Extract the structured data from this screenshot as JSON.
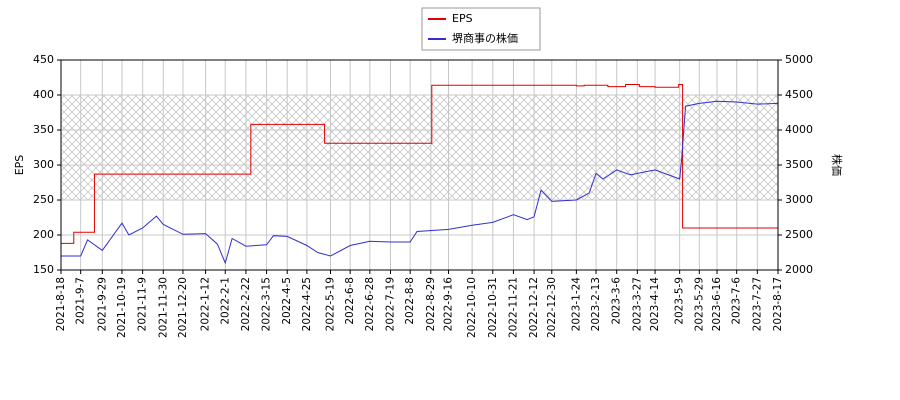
{
  "chart_data": {
    "type": "line",
    "legend": "upper center",
    "grid": true,
    "ylabel": "EPS",
    "y2label": "株価",
    "xlim": [
      "2021-8-18",
      "2023-8-17"
    ],
    "xticks": [
      "2021-8-18",
      "2021-9-7",
      "2021-9-29",
      "2021-10-19",
      "2021-11-9",
      "2021-11-30",
      "2021-12-20",
      "2022-1-12",
      "2022-2-1",
      "2022-2-22",
      "2022-3-15",
      "2022-4-5",
      "2022-4-25",
      "2022-5-19",
      "2022-6-8",
      "2022-6-28",
      "2022-7-19",
      "2022-8-8",
      "2022-8-29",
      "2022-9-16",
      "2022-10-10",
      "2022-10-31",
      "2022-11-21",
      "2022-12-12",
      "2022-12-30",
      "2023-1-24",
      "2023-2-13",
      "2023-3-6",
      "2023-3-27",
      "2023-4-14",
      "2023-5-9",
      "2023-5-29",
      "2023-6-16",
      "2023-7-6",
      "2023-7-27",
      "2023-8-17"
    ],
    "ylim": [
      150,
      450
    ],
    "yticks": [
      150,
      200,
      250,
      300,
      350,
      400,
      450
    ],
    "y2lim": [
      2000,
      5000
    ],
    "y2ticks": [
      2000,
      2500,
      3000,
      3500,
      4000,
      4500,
      5000
    ],
    "shaded_range": [
      250,
      400
    ],
    "series": [
      {
        "name": "EPS",
        "color": "#e00000",
        "step": true,
        "x": [
          "2021-8-18",
          "2021-8-31",
          "2021-9-21",
          "2022-2-27",
          "2022-5-13",
          "2022-8-30",
          "2023-1-24",
          "2023-2-1",
          "2023-2-25",
          "2023-3-15",
          "2023-3-29",
          "2023-4-14",
          "2023-5-8",
          "2023-5-12",
          "2023-8-17"
        ],
        "values": [
          188,
          204,
          287,
          358,
          331,
          414,
          413,
          414,
          412,
          415,
          412,
          411,
          415,
          210,
          210
        ]
      },
      {
        "name": "堺商事の株価",
        "color": "#3030d0",
        "axis": "y2",
        "x": [
          "2021-8-18",
          "2021-9-7",
          "2021-9-14",
          "2021-9-29",
          "2021-10-19",
          "2021-10-26",
          "2021-11-9",
          "2021-11-23",
          "2021-11-30",
          "2021-12-20",
          "2022-1-12",
          "2022-1-24",
          "2022-2-1",
          "2022-2-8",
          "2022-2-22",
          "2022-3-15",
          "2022-3-22",
          "2022-4-5",
          "2022-4-25",
          "2022-5-6",
          "2022-5-19",
          "2022-6-8",
          "2022-6-28",
          "2022-7-19",
          "2022-8-8",
          "2022-8-15",
          "2022-9-16",
          "2022-10-10",
          "2022-10-31",
          "2022-11-21",
          "2022-12-5",
          "2022-12-12",
          "2022-12-19",
          "2022-12-30",
          "2023-1-24",
          "2023-2-6",
          "2023-2-13",
          "2023-2-20",
          "2023-3-6",
          "2023-3-20",
          "2023-4-14",
          "2023-5-9",
          "2023-5-11",
          "2023-5-15",
          "2023-5-29",
          "2023-6-16",
          "2023-7-6",
          "2023-7-27",
          "2023-8-17"
        ],
        "values": [
          2200,
          2200,
          2430,
          2280,
          2670,
          2500,
          2600,
          2770,
          2650,
          2510,
          2520,
          2370,
          2100,
          2450,
          2340,
          2360,
          2490,
          2480,
          2350,
          2250,
          2200,
          2350,
          2410,
          2400,
          2400,
          2550,
          2580,
          2640,
          2680,
          2790,
          2720,
          2760,
          3140,
          2980,
          3000,
          3100,
          3380,
          3300,
          3430,
          3360,
          3430,
          3300,
          3580,
          4340,
          4380,
          4410,
          4400,
          4370,
          4380
        ]
      }
    ]
  }
}
